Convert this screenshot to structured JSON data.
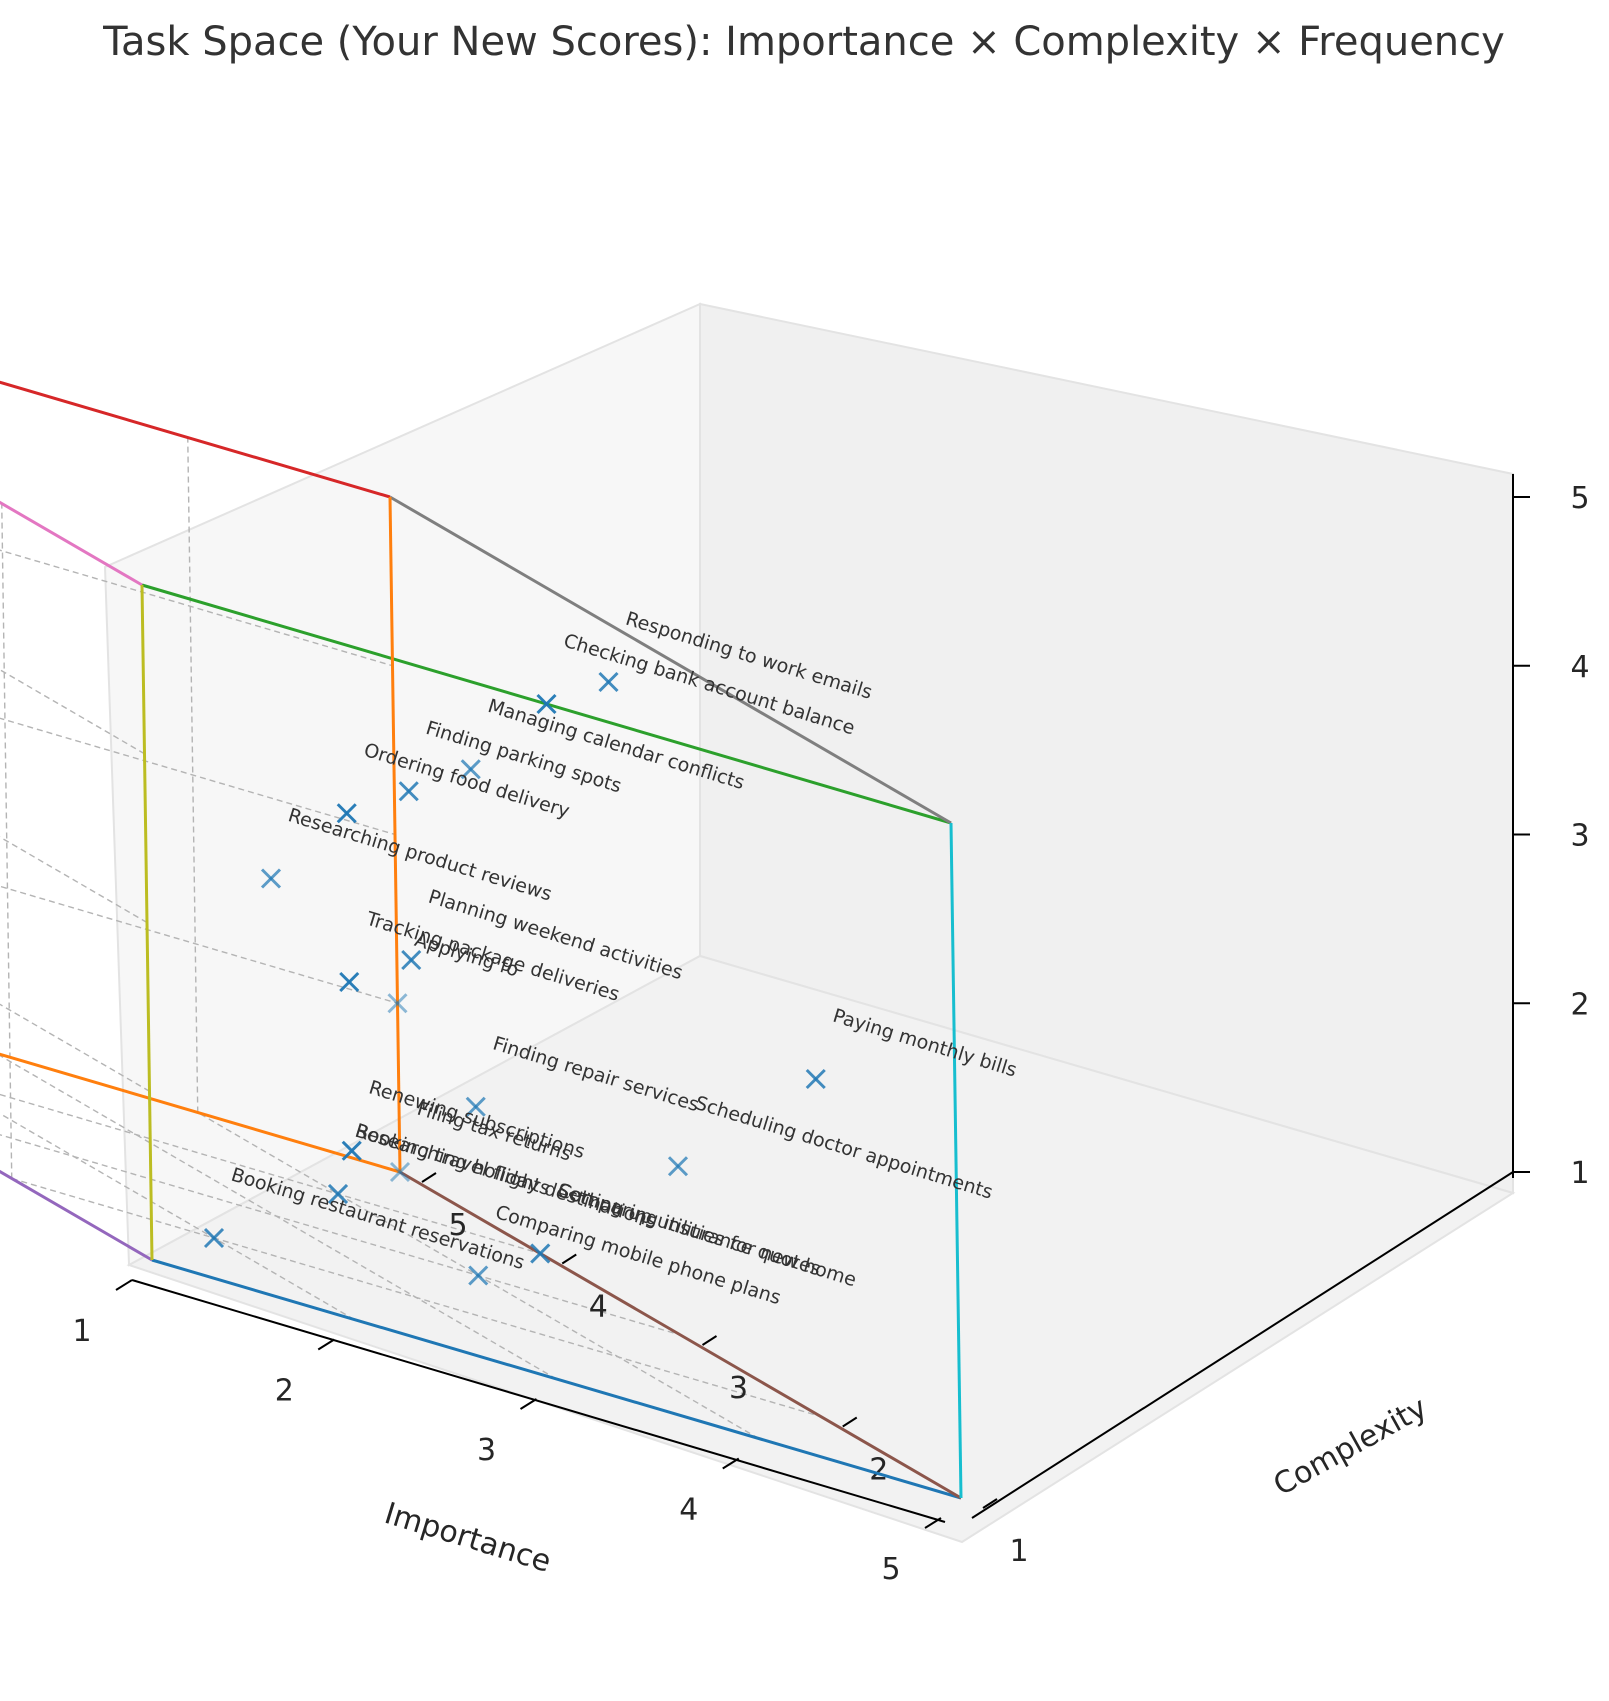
{
  "chart_data": {
    "type": "scatter",
    "title": "Task Space (Your New Scores): Importance × Complexity × Frequency",
    "xlabel": "Importance",
    "ylabel": "Complexity",
    "zlabel": "Frequency",
    "xlim": [
      1,
      5
    ],
    "ylim": [
      1,
      5
    ],
    "zlim": [
      1,
      5
    ],
    "xticks": [
      "1",
      "2",
      "3",
      "4",
      "5"
    ],
    "yticks": [
      "1",
      "2",
      "3",
      "4",
      "5"
    ],
    "zticks": [
      "1",
      "2",
      "3",
      "4",
      "5"
    ],
    "grid": true,
    "marker": "x",
    "marker_color": "#1f77b4",
    "points": [
      {
        "label": "Responding to work emails",
        "importance": 4,
        "complexity": 2,
        "frequency": 5
      },
      {
        "label": "Checking bank account balance",
        "importance": 3,
        "complexity": 1,
        "frequency": 5
      },
      {
        "label": "Managing calendar conflicts",
        "importance": 4,
        "complexity": 3,
        "frequency": 4
      },
      {
        "label": "Finding parking spots",
        "importance": 3,
        "complexity": 2,
        "frequency": 4
      },
      {
        "label": "Ordering food delivery",
        "importance": 2,
        "complexity": 1,
        "frequency": 4
      },
      {
        "label": "Paying monthly bills",
        "importance": 5,
        "complexity": 2,
        "frequency": 3
      },
      {
        "label": "Planning weekend activities",
        "importance": 3,
        "complexity": 2,
        "frequency": 3
      },
      {
        "label": "Researching product reviews",
        "importance": 3,
        "complexity": 3,
        "frequency": 3
      },
      {
        "label": "Scheduling doctor appointments",
        "importance": 5,
        "complexity": 3,
        "frequency": 2
      },
      {
        "label": "Tracking package deliveries",
        "importance": 2,
        "complexity": 1,
        "frequency": 3
      },
      {
        "label": "Finding repair services",
        "importance": 4,
        "complexity": 3,
        "frequency": 2
      },
      {
        "label": "Booking travel flights",
        "importance": 4,
        "complexity": 4,
        "frequency": 1
      },
      {
        "label": "Booking restaurant reservations",
        "importance": 2,
        "complexity": 2,
        "frequency": 1
      },
      {
        "label": "Renewing subscriptions",
        "importance": 2,
        "complexity": 1,
        "frequency": 2
      },
      {
        "label": "Setting up utilities for new home",
        "importance": 5,
        "complexity": 4,
        "frequency": 1
      },
      {
        "label": "Researching holiday destinations",
        "importance": 4,
        "complexity": 4,
        "frequency": 1
      },
      {
        "label": "Comparing mobile phone plans",
        "importance": 4,
        "complexity": 3,
        "frequency": 1
      },
      {
        "label": "Comparing insurance quotes",
        "importance": 5,
        "complexity": 4,
        "frequency": 1
      },
      {
        "label": "Filing tax returns",
        "importance": 5,
        "complexity": 5,
        "frequency": 1
      },
      {
        "label": "Applying fo",
        "importance": 5,
        "complexity": 5,
        "frequency": 2
      }
    ]
  }
}
